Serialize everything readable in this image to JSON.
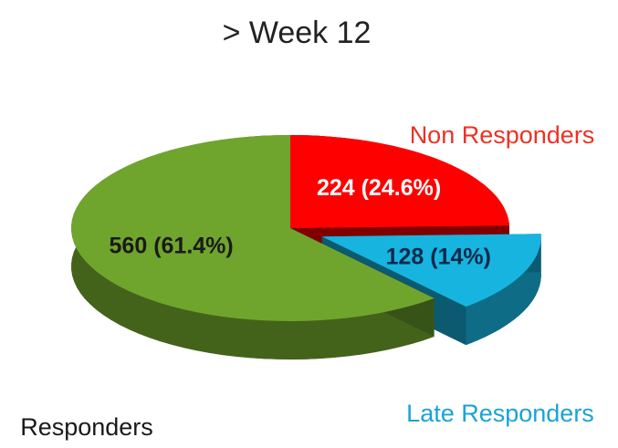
{
  "chart_data": {
    "type": "pie",
    "title": "> Week 12",
    "categories": [
      "Non Responders",
      "Late Responders",
      "Responders"
    ],
    "values": [
      224,
      128,
      560
    ],
    "value_labels": [
      "224 (24.6%)",
      "128 (14%)",
      "560 (61.4%)"
    ],
    "colors": [
      "#ff0000",
      "#17b4e0",
      "#6fa52d"
    ]
  }
}
